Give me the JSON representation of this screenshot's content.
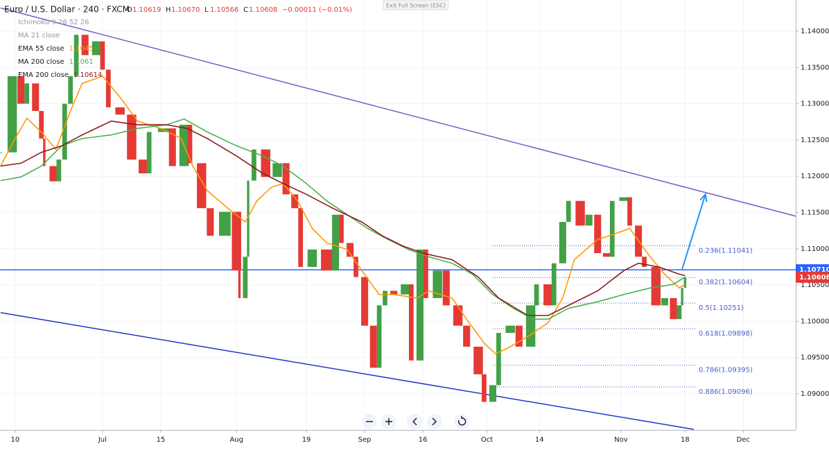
{
  "chart_data": {
    "type": "candlestick",
    "title": "Euro / U.S. Dollar · 240 · FXCM",
    "quote": [
      {
        "label": "O",
        "value": "1.10619"
      },
      {
        "label": "H",
        "value": "1.10670"
      },
      {
        "label": "L",
        "value": "1.10566"
      },
      {
        "label": "C",
        "value": "1.10608"
      },
      {
        "label": "",
        "value": "−0.00011 (−0.01%)"
      }
    ],
    "hidden_indicators": [
      "Ichimoku 9 26 52 26",
      "MA 21 close"
    ],
    "exit_button": "Exit Full Screen (ESC)",
    "xlim": [
      -2.6,
      134
    ],
    "ylim": [
      1.08503,
      1.1443
    ],
    "xticks": [
      {
        "value": 0,
        "label": "10"
      },
      {
        "value": 15,
        "label": "Jul"
      },
      {
        "value": 25,
        "label": "15"
      },
      {
        "value": 38,
        "label": "Aug"
      },
      {
        "value": 50,
        "label": "19"
      },
      {
        "value": 60,
        "label": "Sep"
      },
      {
        "value": 70,
        "label": "16"
      },
      {
        "value": 81,
        "label": "Oct"
      },
      {
        "value": 90,
        "label": "14"
      },
      {
        "value": 104,
        "label": "Nov"
      },
      {
        "value": 115,
        "label": "18"
      },
      {
        "value": 125,
        "label": "Dec"
      }
    ],
    "yticks": [
      {
        "value": 1.09,
        "label": "1.09000"
      },
      {
        "value": 1.095,
        "label": "1.09500"
      },
      {
        "value": 1.1,
        "label": "1.10000"
      },
      {
        "value": 1.105,
        "label": "1.10500"
      },
      {
        "value": 1.11,
        "label": "1.11000"
      },
      {
        "value": 1.115,
        "label": "1.11500"
      },
      {
        "value": 1.12,
        "label": "1.12000"
      },
      {
        "value": 1.125,
        "label": "1.12500"
      },
      {
        "value": 1.13,
        "label": "1.13000"
      },
      {
        "value": 1.135,
        "label": "1.13500"
      },
      {
        "value": 1.14,
        "label": "1.14000"
      }
    ],
    "grid": true,
    "candles": {
      "up_color": "#43a047",
      "down_color": "#e53935",
      "x": [
        -2.5,
        -0.5,
        1,
        2,
        3.5,
        4.5,
        5,
        6.5,
        7.5,
        8.5,
        9.5,
        10.5,
        12,
        14,
        15,
        16,
        18,
        20,
        22,
        23,
        25.5,
        27,
        29,
        30,
        32,
        33.5,
        36,
        38,
        38.5,
        39.5,
        40,
        41,
        43,
        45,
        46.5,
        48,
        49,
        51,
        53.5,
        55,
        56,
        57.5,
        58.5,
        60,
        61.5,
        62.5,
        63.5,
        65,
        67,
        68,
        69.5,
        70.5,
        72.5,
        74,
        76,
        77.5,
        79.5,
        80.5,
        82,
        83,
        85,
        86.5,
        88.5,
        89.5,
        91.5,
        92.5,
        94,
        95,
        97,
        98.5,
        100,
        101.5,
        102.5,
        104.5,
        105.5,
        107,
        108,
        110,
        111.5,
        113,
        114,
        114.5,
        115
      ],
      "close": [
        1.1233,
        1.1338,
        1.13,
        1.1328,
        1.129,
        1.1252,
        1.1214,
        1.1193,
        1.1223,
        1.13,
        1.1338,
        1.1395,
        1.1367,
        1.1386,
        1.1347,
        1.1295,
        1.1285,
        1.1223,
        1.1204,
        1.1261,
        1.1266,
        1.1214,
        1.1271,
        1.1218,
        1.1156,
        1.1118,
        1.1151,
        1.107,
        1.1032,
        1.1089,
        1.1194,
        1.1237,
        1.1199,
        1.1218,
        1.1175,
        1.1156,
        1.1075,
        1.1099,
        1.107,
        1.1147,
        1.1108,
        1.1089,
        1.1061,
        1.0994,
        1.0936,
        1.1022,
        1.1042,
        1.1037,
        1.1051,
        1.0946,
        1.1099,
        1.1032,
        1.107,
        1.1022,
        1.0994,
        1.0965,
        1.0927,
        1.0889,
        1.0912,
        1.0984,
        1.0994,
        1.0965,
        1.1022,
        1.1051,
        1.1022,
        1.108,
        1.1137,
        1.1166,
        1.1132,
        1.1147,
        1.1094,
        1.1089,
        1.1166,
        1.1171,
        1.1132,
        1.1089,
        1.1075,
        1.1022,
        1.1032,
        1.1003,
        1.1022,
        1.1046,
        1.10608
      ]
    },
    "series": [
      {
        "name": "EMA 55 close",
        "legend_value": "1.1045",
        "color": "#ff9800",
        "x": [
          -2.5,
          0,
          2,
          4.5,
          7,
          9.5,
          11.5,
          15,
          18,
          21,
          25,
          28.5,
          30.5,
          33,
          36.5,
          39.5,
          41.5,
          44,
          46,
          48.5,
          51,
          53.5,
          57,
          59.5,
          62.5,
          65,
          69,
          71,
          75,
          77.5,
          80.5,
          82.5,
          85,
          88,
          91.5,
          94,
          96,
          100,
          102,
          105.5,
          109,
          111.5,
          114,
          115
        ],
        "values": [
          1.1214,
          1.1252,
          1.128,
          1.1261,
          1.1237,
          1.129,
          1.1328,
          1.1338,
          1.1309,
          1.1276,
          1.1266,
          1.1252,
          1.1214,
          1.118,
          1.1156,
          1.1137,
          1.1166,
          1.1185,
          1.119,
          1.1166,
          1.1128,
          1.1108,
          1.1099,
          1.107,
          1.1037,
          1.1037,
          1.1032,
          1.1042,
          1.1032,
          1.1003,
          1.097,
          1.0955,
          1.0965,
          1.0979,
          1.0998,
          1.1032,
          1.1085,
          1.1113,
          1.1118,
          1.1128,
          1.1089,
          1.1065,
          1.1046,
          1.1051
        ]
      },
      {
        "name": "MA 200 close",
        "legend_value": "1.1061",
        "color": "#4caf50",
        "x": [
          -2.5,
          1,
          4.5,
          8,
          11.5,
          16.5,
          21,
          26,
          29,
          33,
          38,
          42.5,
          46,
          50,
          53.5,
          57,
          60.5,
          64,
          67.5,
          71,
          75,
          78.5,
          82,
          85.5,
          89,
          91.5,
          95,
          100,
          104.5,
          109,
          113,
          115
        ],
        "values": [
          1.1194,
          1.1199,
          1.1214,
          1.1242,
          1.1252,
          1.1257,
          1.1266,
          1.1271,
          1.1279,
          1.1261,
          1.1242,
          1.1228,
          1.1214,
          1.119,
          1.1166,
          1.1147,
          1.1128,
          1.1113,
          1.1099,
          1.1089,
          1.108,
          1.1065,
          1.1037,
          1.1018,
          1.1003,
          1.1003,
          1.1018,
          1.1027,
          1.1037,
          1.1046,
          1.1051,
          1.1061
        ]
      },
      {
        "name": "EMA 200 close",
        "legend_value": "1.10614",
        "color": "#8b1a1a",
        "x": [
          -2.5,
          1,
          4.5,
          8,
          11.5,
          16.5,
          21,
          26,
          29.5,
          33,
          38,
          42.5,
          46,
          50,
          54.5,
          59.5,
          63,
          66.5,
          70,
          75,
          79.5,
          83,
          88,
          91.5,
          95,
          100,
          104.5,
          107,
          110.5,
          114,
          115
        ],
        "values": [
          1.1214,
          1.1218,
          1.1233,
          1.1242,
          1.1257,
          1.1276,
          1.1271,
          1.1271,
          1.1266,
          1.1252,
          1.1228,
          1.1204,
          1.119,
          1.1175,
          1.1156,
          1.1137,
          1.1118,
          1.1104,
          1.1094,
          1.1085,
          1.1061,
          1.1032,
          1.1008,
          1.1008,
          1.1022,
          1.1042,
          1.107,
          1.108,
          1.1075,
          1.1065,
          1.1063
        ]
      }
    ],
    "trendlines": [
      {
        "color": "#7e57c2",
        "x": [
          -2.5,
          134
        ],
        "values": [
          1.1432,
          1.1145
        ]
      },
      {
        "color": "#1e35c8",
        "x": [
          -2.5,
          116.5
        ],
        "values": [
          1.1012,
          1.0851
        ]
      }
    ],
    "arrow": {
      "color": "#2196f3",
      "x": [
        114.5,
        118.5
      ],
      "values": [
        1.1072,
        1.1175
      ]
    },
    "hline": {
      "value": 1.1071,
      "label": "1.10710",
      "color": "#2962ff"
    },
    "last_price": {
      "value": 1.10608,
      "label": "1.10608",
      "color": "#e53935"
    },
    "fib": {
      "color": "#4a5bd0",
      "x": [
        82,
        116.8
      ],
      "levels": [
        {
          "value": 1.11041,
          "label": "0.236(1.11041)"
        },
        {
          "value": 1.10604,
          "label": "0.382(1.10604)"
        },
        {
          "value": 1.10251,
          "label": "0.5(1.10251)"
        },
        {
          "value": 1.09898,
          "label": "0.618(1.09898)"
        },
        {
          "value": 1.09395,
          "label": "0.786(1.09395)"
        },
        {
          "value": 1.09096,
          "label": "0.886(1.09096)"
        }
      ]
    }
  }
}
